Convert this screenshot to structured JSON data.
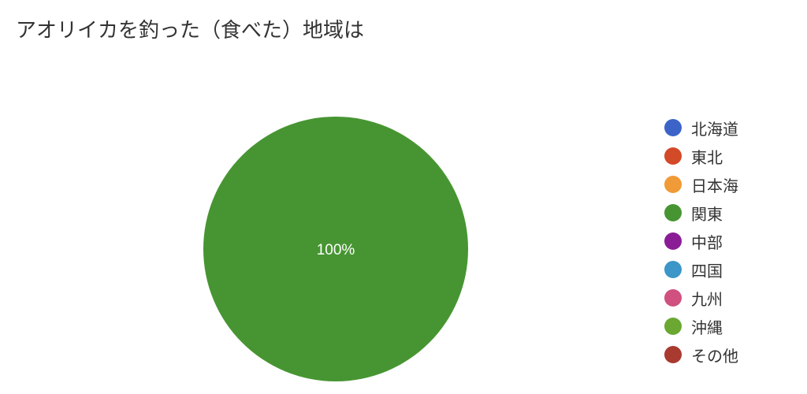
{
  "chart_data": {
    "type": "pie",
    "title": "アオリイカを釣った（食べた）地域は",
    "categories": [
      "北海道",
      "東北",
      "日本海",
      "関東",
      "中部",
      "四国",
      "九州",
      "沖縄",
      "その他"
    ],
    "values": [
      0,
      0,
      0,
      100,
      0,
      0,
      0,
      0,
      0
    ],
    "colors": [
      "#3c64c8",
      "#d24a28",
      "#f09a38",
      "#479532",
      "#8a1d96",
      "#3c96c8",
      "#d05080",
      "#6aa832",
      "#a83a30"
    ],
    "slice_labels": [
      "",
      "",
      "",
      "100%",
      "",
      "",
      "",
      "",
      ""
    ],
    "legend_position": "right"
  }
}
